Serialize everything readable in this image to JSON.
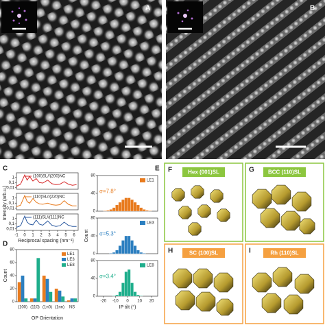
{
  "panel_labels": [
    "A",
    "B",
    "C",
    "D",
    "E",
    "F",
    "G",
    "H",
    "I"
  ],
  "c_axis_labels": {
    "y": "Intensity (arb.u.)",
    "x": "Reciprocal spacing (nm⁻¹)"
  },
  "chart_data": [
    {
      "type": "line",
      "log_y": true,
      "xlim": [
        -1,
        6.5
      ],
      "ylim": [
        0.005,
        8
      ],
      "yticks": [
        {
          "value": 0.01,
          "label": "0,01"
        },
        {
          "value": 0.1,
          "label": "0,1"
        },
        1
      ],
      "x": [
        -1,
        -0.5,
        0,
        0.3,
        0.6,
        1,
        1.4,
        1.8,
        2.2,
        2.8,
        3.3,
        3.8,
        4.3,
        4.8,
        5.3,
        5.8,
        6.3
      ],
      "series": [
        {
          "name": "(100)SL//(200)NC",
          "color": "#d62728",
          "values": [
            0.02,
            0.05,
            3,
            0.3,
            1.5,
            0.2,
            0.6,
            0.1,
            0.08,
            0.3,
            0.06,
            0.04,
            0.05,
            0.15,
            0.05,
            0.03,
            0.04
          ]
        }
      ]
    },
    {
      "type": "line",
      "log_y": true,
      "xlim": [
        -1,
        6.5
      ],
      "ylim": [
        0.005,
        8
      ],
      "yticks": [
        {
          "value": 0.01,
          "label": "0,01"
        },
        {
          "value": 0.1,
          "label": "0,1"
        },
        1
      ],
      "x": [
        -1,
        -0.5,
        0,
        0.3,
        0.6,
        1,
        1.4,
        1.8,
        2.2,
        2.8,
        3.3,
        3.8,
        4.3,
        4.8,
        5.3,
        5.8,
        6.3
      ],
      "series": [
        {
          "name": "(110)SL//(220)NC",
          "color": "#e87b1e",
          "values": [
            0.02,
            0.04,
            3,
            0.2,
            0.1,
            0.8,
            0.15,
            0.07,
            0.06,
            0.1,
            0.05,
            0.04,
            0.05,
            0.3,
            0.06,
            0.03,
            0.03
          ]
        }
      ]
    },
    {
      "type": "line",
      "log_y": true,
      "xlim": [
        -1,
        6.5
      ],
      "ylim": [
        0.005,
        8
      ],
      "yticks": [
        {
          "value": 0.01,
          "label": "0,01"
        },
        {
          "value": 0.1,
          "label": "0,1"
        },
        1
      ],
      "xticks": [
        -1,
        0,
        1,
        2,
        3,
        4,
        5,
        6
      ],
      "x": [
        -1,
        -0.5,
        0,
        0.3,
        0.6,
        1,
        1.4,
        1.8,
        2.2,
        2.8,
        3.3,
        3.8,
        4.3,
        4.8,
        5.3,
        5.8,
        6.3
      ],
      "series": [
        {
          "name": "(111)SL//(111)NC",
          "color": "#2c5aa0",
          "values": [
            0.02,
            0.04,
            3,
            0.2,
            0.08,
            0.06,
            0.5,
            0.08,
            0.05,
            0.35,
            0.05,
            0.03,
            0.04,
            0.2,
            0.05,
            0.03,
            0.03
          ]
        }
      ]
    },
    {
      "type": "bar",
      "y_label": "Count",
      "x_label": "OP Orientation",
      "categories": [
        "(100)",
        "(110)",
        "(1n0)",
        "(1nn)",
        "NS"
      ],
      "ylim": [
        0,
        80
      ],
      "yticks": [
        0,
        20,
        40,
        60,
        80
      ],
      "series": [
        {
          "name": "LE1",
          "color": "#e87b1e",
          "values": [
            30,
            5,
            40,
            20,
            2
          ]
        },
        {
          "name": "LE3",
          "color": "#2c7fc0",
          "values": [
            40,
            5,
            35,
            17,
            5
          ]
        },
        {
          "name": "LE8",
          "color": "#1fae8c",
          "values": [
            5,
            67,
            15,
            8,
            5
          ]
        }
      ]
    },
    {
      "type": "histogram",
      "annotation": "σ=7.8°",
      "xlim": [
        -25,
        25
      ],
      "ylim": [
        0,
        80
      ],
      "yticks": [
        0,
        40,
        80
      ],
      "bins": [
        -20,
        -17.5,
        -15,
        -12.5,
        -10,
        -7.5,
        -5,
        -2.5,
        0,
        2.5,
        5,
        7.5,
        10,
        12.5,
        15,
        17.5,
        20
      ],
      "series": [
        {
          "name": "LE1",
          "color": "#e87b1e",
          "values": [
            1,
            2,
            4,
            8,
            14,
            20,
            26,
            30,
            30,
            26,
            20,
            14,
            8,
            4,
            2,
            1
          ]
        }
      ]
    },
    {
      "type": "histogram",
      "annotation": "σ=5.3°",
      "y_label": "Count",
      "xlim": [
        -25,
        25
      ],
      "ylim": [
        0,
        80
      ],
      "yticks": [
        0,
        40,
        80
      ],
      "bins": [
        -20,
        -17.5,
        -15,
        -12.5,
        -10,
        -7.5,
        -5,
        -2.5,
        0,
        2.5,
        5,
        7.5,
        10,
        12.5,
        15,
        17.5,
        20
      ],
      "series": [
        {
          "name": "LE3",
          "color": "#2c7fc0",
          "values": [
            0,
            0,
            1,
            3,
            8,
            18,
            30,
            40,
            40,
            30,
            18,
            8,
            3,
            1,
            0,
            0
          ]
        }
      ]
    },
    {
      "type": "histogram",
      "annotation": "σ=3.4°",
      "x_label": "IP tilt (°)",
      "xlim": [
        -25,
        25
      ],
      "ylim": [
        0,
        80
      ],
      "yticks": [
        0,
        40,
        80
      ],
      "xticks": [
        -20,
        -10,
        0,
        10,
        20
      ],
      "bins": [
        -20,
        -17.5,
        -15,
        -12.5,
        -10,
        -7.5,
        -5,
        -2.5,
        0,
        2.5,
        5,
        7.5,
        10,
        12.5,
        15,
        17.5,
        20
      ],
      "series": [
        {
          "name": "LE8",
          "color": "#1fae8c",
          "values": [
            0,
            0,
            0,
            1,
            3,
            10,
            30,
            55,
            60,
            30,
            10,
            3,
            1,
            0,
            0,
            0
          ]
        }
      ]
    }
  ],
  "models": [
    {
      "label": "Hex (001)SL"
    },
    {
      "label": "BCC (110)SL"
    },
    {
      "label": "SC (100)SL"
    },
    {
      "label": "Rh (110)SL"
    }
  ]
}
